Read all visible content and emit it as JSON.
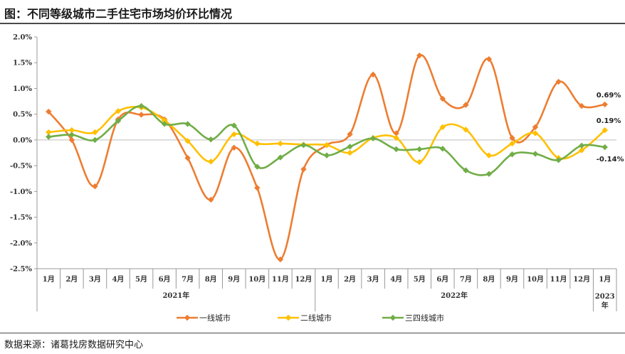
{
  "title": "图：不同等级城市二手住宅市场均价环比情况",
  "source": "数据来源：诸葛找房数据研究中心",
  "chart_data": {
    "type": "line",
    "categories": [
      "1月",
      "2月",
      "3月",
      "4月",
      "5月",
      "6月",
      "7月",
      "8月",
      "9月",
      "10月",
      "11月",
      "12月",
      "1月",
      "2月",
      "3月",
      "4月",
      "5月",
      "6月",
      "7月",
      "8月",
      "9月",
      "10月",
      "11月",
      "12月",
      "1月"
    ],
    "year_groups": [
      {
        "label": "2021年",
        "start": 0,
        "end": 11
      },
      {
        "label": "2022年",
        "start": 12,
        "end": 23
      },
      {
        "label": "2023年",
        "start": 24,
        "end": 24
      }
    ],
    "ylim": [
      -2.5,
      2.0
    ],
    "yticks": [
      "2.0%",
      "1.5%",
      "1.0%",
      "0.5%",
      "0.0%",
      "-0.5%",
      "-1.0%",
      "-1.5%",
      "-2.0%",
      "-2.5%"
    ],
    "grid": false,
    "legend_position": "bottom",
    "series": [
      {
        "name": "一线城市",
        "color": "#ED7D31",
        "values": [
          0.55,
          0.0,
          -0.9,
          0.4,
          0.49,
          0.4,
          -0.35,
          -1.16,
          -0.15,
          -0.93,
          -2.32,
          -0.57,
          -0.1,
          0.11,
          1.27,
          0.13,
          1.64,
          0.8,
          0.68,
          1.57,
          0.04,
          0.25,
          1.13,
          0.66,
          0.69
        ]
      },
      {
        "name": "二线城市",
        "color": "#FFC000",
        "values": [
          0.15,
          0.19,
          0.15,
          0.56,
          0.63,
          0.38,
          -0.02,
          -0.42,
          0.11,
          -0.07,
          -0.07,
          -0.09,
          -0.1,
          -0.25,
          0.04,
          0.04,
          -0.43,
          0.25,
          0.2,
          -0.3,
          -0.07,
          0.13,
          -0.35,
          -0.2,
          0.19
        ]
      },
      {
        "name": "三四线城市",
        "color": "#70AD47",
        "values": [
          0.06,
          0.1,
          0.0,
          0.37,
          0.66,
          0.31,
          0.31,
          0.01,
          0.28,
          -0.52,
          -0.34,
          -0.1,
          -0.3,
          -0.13,
          0.03,
          -0.18,
          -0.18,
          -0.17,
          -0.59,
          -0.66,
          -0.28,
          -0.27,
          -0.39,
          -0.11,
          -0.14
        ]
      }
    ],
    "annotations": [
      {
        "series": 0,
        "index": 24,
        "text": "0.69%"
      },
      {
        "series": 1,
        "index": 24,
        "text": "0.19%"
      },
      {
        "series": 2,
        "index": 24,
        "text": "-0.14%"
      }
    ]
  }
}
